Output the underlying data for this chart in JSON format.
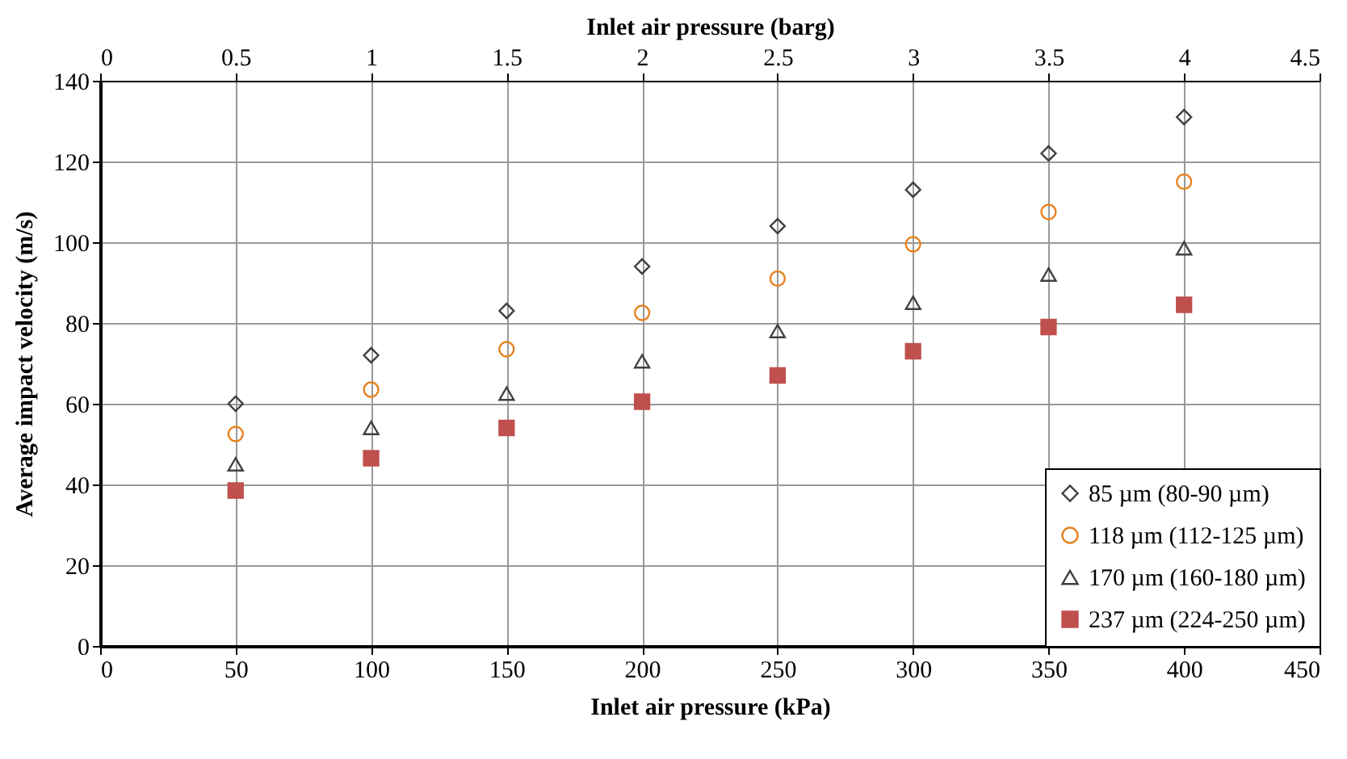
{
  "chart_data": {
    "type": "scatter",
    "xlabel": "Inlet air pressure (kPa)",
    "x2label": "Inlet air pressure (barg)",
    "ylabel": "Average impact velocity (m/s)",
    "x": [
      50,
      100,
      150,
      200,
      250,
      300,
      350,
      400
    ],
    "xlim": [
      0,
      450
    ],
    "xticks": [
      0,
      50,
      100,
      150,
      200,
      250,
      300,
      350,
      400,
      450
    ],
    "x2lim": [
      0,
      4.5
    ],
    "x2ticks": [
      0,
      0.5,
      1,
      1.5,
      2,
      2.5,
      3,
      3.5,
      4,
      4.5
    ],
    "ylim": [
      0,
      140
    ],
    "yticks": [
      0,
      20,
      40,
      60,
      80,
      100,
      120,
      140
    ],
    "grid": true,
    "legend": "bottom right",
    "series": [
      {
        "name": "85 µm (80-90 µm)",
        "color": "#404040",
        "marker": "diamond",
        "values": [
          60,
          72,
          83,
          94,
          104,
          113,
          122,
          131
        ]
      },
      {
        "name": "118 µm (112-125 µm)",
        "color": "#e6821e",
        "marker": "circle",
        "values": [
          52.5,
          63.5,
          73.5,
          82.5,
          91,
          99.5,
          107.5,
          115
        ]
      },
      {
        "name": "170 µm (160-180 µm)",
        "color": "#404040",
        "marker": "triangle",
        "values": [
          45,
          54,
          62.5,
          70.5,
          78,
          85,
          92,
          98.5
        ]
      },
      {
        "name": "237 µm (224-250 µm)",
        "color": "#c0504d",
        "marker": "square",
        "values": [
          38.5,
          46.5,
          54,
          60.5,
          67,
          73,
          79,
          84.5
        ]
      }
    ]
  }
}
